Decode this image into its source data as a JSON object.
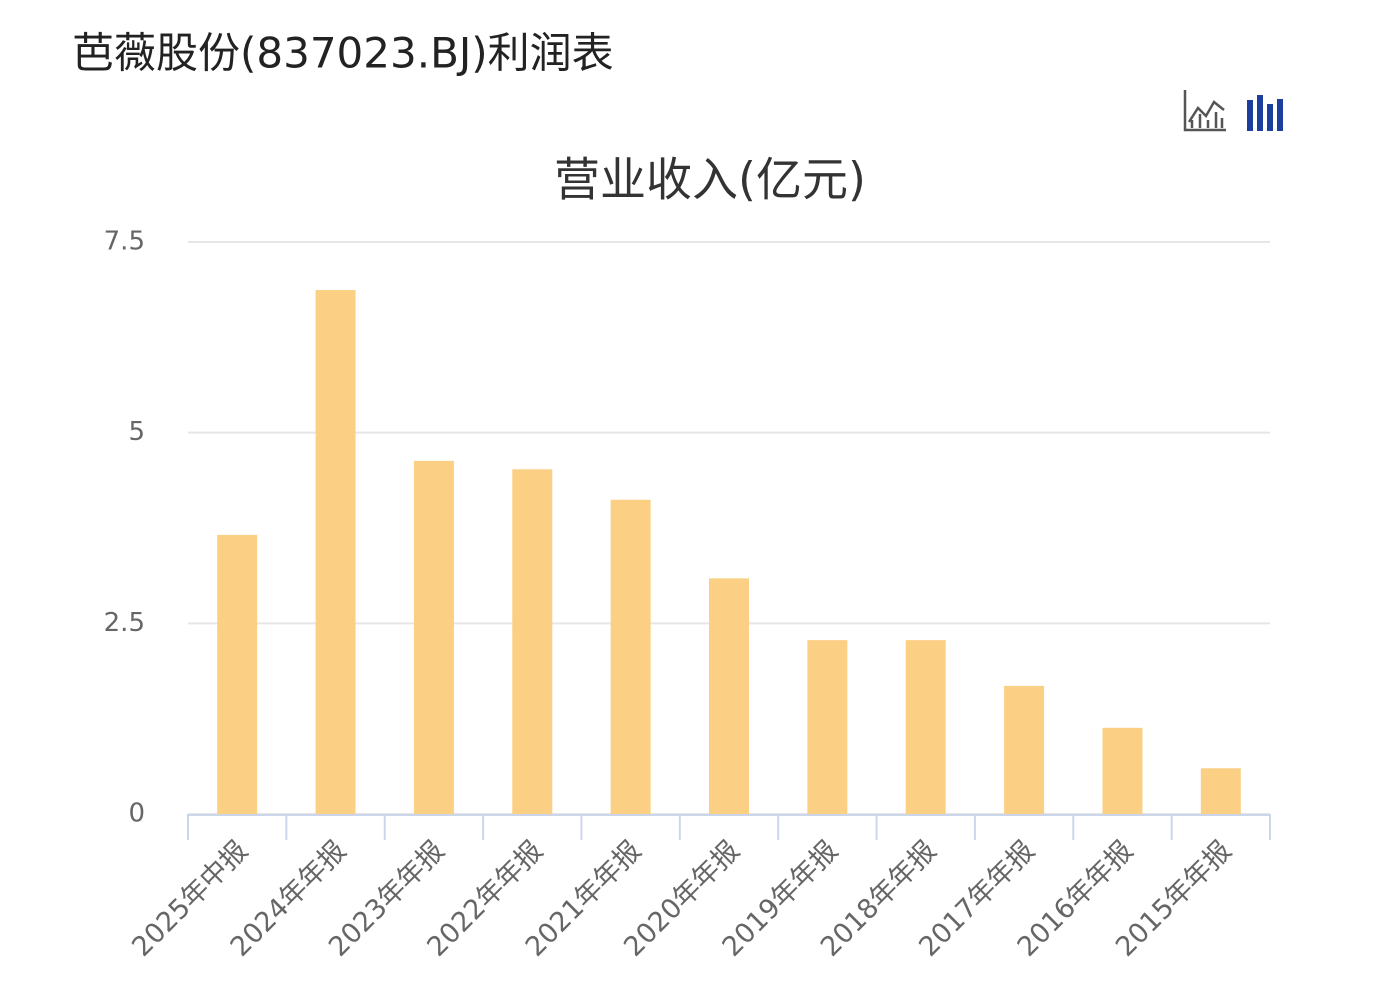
{
  "header": {
    "title": "芭薇股份(837023.BJ)利润表"
  },
  "chart_data": {
    "type": "bar",
    "title": "营业收入(亿元)",
    "categories": [
      "2025年中报",
      "2024年年报",
      "2023年年报",
      "2022年年报",
      "2021年年报",
      "2020年年报",
      "2019年年报",
      "2018年年报",
      "2017年年报",
      "2016年年报",
      "2015年年报"
    ],
    "values": [
      3.66,
      6.87,
      4.63,
      4.52,
      4.12,
      3.09,
      2.28,
      2.28,
      1.68,
      1.13,
      0.6
    ],
    "color": "#fbd084",
    "ylim": [
      0,
      7.5
    ],
    "yticks": [
      0,
      2.5,
      5,
      7.5
    ],
    "grid": true
  }
}
